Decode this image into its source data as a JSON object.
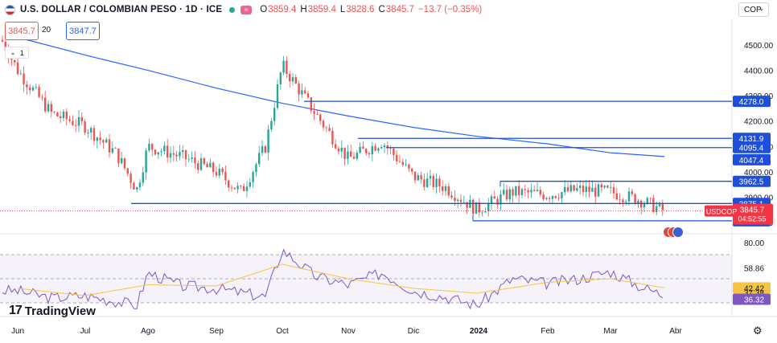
{
  "header": {
    "symbol": "U.S. DOLLAR / COLOMBIAN PESO · 1D · ICE",
    "open_label": "O",
    "open": "3859.4",
    "high_label": "H",
    "high": "3859.4",
    "low_label": "L",
    "low": "3828.6",
    "close_label": "C",
    "close": "3845.7",
    "change": "−13.7 (−0.35%)"
  },
  "trade": {
    "sell_price": "3845.7",
    "spread": "20",
    "buy_price": "3847.7"
  },
  "currency_selector": "COP",
  "indicator_legend": "1",
  "brand": "TradingView",
  "colors": {
    "up": "#26a69a",
    "down": "#ef5350",
    "ma": "#2962ff",
    "level": "#1e4fd8",
    "rsi": "#7e57c2",
    "rsi_ma": "#f5c542",
    "price_tag": "#f23645"
  },
  "chart_data": [
    {
      "type": "candlestick",
      "title": "U.S. DOLLAR / COLOMBIAN PESO",
      "x_axis_labels": [
        "Jun",
        "Jul",
        "Ago",
        "Sep",
        "Oct",
        "Nov",
        "Dic",
        "2024",
        "Feb",
        "Mar",
        "Abr"
      ],
      "y_ticks": [
        4500.0,
        4400.0,
        4300.0,
        4200.0,
        4100.0,
        4000.0,
        3900.0,
        3800.0
      ],
      "ylim": [
        3790,
        4570
      ],
      "moving_average_note": "200-period simple moving average (blue line)",
      "moving_average": [
        {
          "x": "Jun",
          "y": 4530
        },
        {
          "x": "Jul",
          "y": 4460
        },
        {
          "x": "Ago",
          "y": 4400
        },
        {
          "x": "Sep",
          "y": 4330
        },
        {
          "x": "Oct",
          "y": 4270
        },
        {
          "x": "Nov",
          "y": 4220
        },
        {
          "x": "Dic",
          "y": 4175
        },
        {
          "x": "2024",
          "y": 4140
        },
        {
          "x": "Feb",
          "y": 4110
        },
        {
          "x": "Mar",
          "y": 4075
        },
        {
          "x": "late Mar",
          "y": 4060
        }
      ],
      "price_path": [
        {
          "x": "late May",
          "y": 4520
        },
        {
          "x": "Jun",
          "y": 4400
        },
        {
          "x": "mid Jun",
          "y": 4230
        },
        {
          "x": "Jul",
          "y": 4180
        },
        {
          "x": "mid Jul",
          "y": 4070
        },
        {
          "x": "late Jul",
          "y": 3930
        },
        {
          "x": "Ago",
          "y": 4100
        },
        {
          "x": "mid Ago",
          "y": 4060
        },
        {
          "x": "Sep",
          "y": 4000
        },
        {
          "x": "mid Sep",
          "y": 3920
        },
        {
          "x": "late Sep",
          "y": 4100
        },
        {
          "x": "Oct",
          "y": 4420
        },
        {
          "x": "mid Oct",
          "y": 4230
        },
        {
          "x": "Nov",
          "y": 4050
        },
        {
          "x": "mid Nov",
          "y": 4120
        },
        {
          "x": "Dic",
          "y": 3980
        },
        {
          "x": "mid Dic",
          "y": 3940
        },
        {
          "x": "2024",
          "y": 3850
        },
        {
          "x": "mid Ene",
          "y": 3920
        },
        {
          "x": "Feb",
          "y": 3910
        },
        {
          "x": "mid Feb",
          "y": 3930
        },
        {
          "x": "Mar",
          "y": 3920
        },
        {
          "x": "mid Mar",
          "y": 3890
        },
        {
          "x": "late Mar",
          "y": 3845.7
        }
      ],
      "horizontal_levels": [
        4278.0,
        4131.9,
        4095.4,
        3962.5,
        3875.1,
        3806.7
      ],
      "axis_tags": [
        {
          "label": "4278.0",
          "value": 4278.0
        },
        {
          "label": "4131.9",
          "value": 4131.9
        },
        {
          "label": "4095.4",
          "value": 4095.4
        },
        {
          "label": "4047.4",
          "value": 4047.4
        },
        {
          "label": "3962.5",
          "value": 3962.5
        },
        {
          "label": "3875.1",
          "value": 3875.1
        },
        {
          "label": "3845.7",
          "value": 3845.7
        },
        {
          "label": "3806.7",
          "value": 3806.7
        }
      ],
      "last_price": {
        "symbol_tag": "USDCOP",
        "price": "3845.7",
        "countdown": "04:52:55"
      }
    },
    {
      "type": "line",
      "title": "RSI",
      "y_ticks": [
        80.0,
        58.86,
        42.42,
        37.38,
        36.32
      ],
      "ylim": [
        20,
        85
      ],
      "band": [
        30,
        70
      ],
      "rsi": [
        {
          "x": "Jun",
          "y": 40
        },
        {
          "x": "mid Jun",
          "y": 34
        },
        {
          "x": "Jul",
          "y": 36
        },
        {
          "x": "late Jul",
          "y": 28
        },
        {
          "x": "Ago",
          "y": 55
        },
        {
          "x": "mid Ago",
          "y": 44
        },
        {
          "x": "Sep",
          "y": 42
        },
        {
          "x": "late Sep",
          "y": 35
        },
        {
          "x": "Oct",
          "y": 74
        },
        {
          "x": "mid Oct",
          "y": 52
        },
        {
          "x": "Nov",
          "y": 45
        },
        {
          "x": "mid Nov",
          "y": 55
        },
        {
          "x": "Dic",
          "y": 40
        },
        {
          "x": "mid Dic",
          "y": 35
        },
        {
          "x": "2024",
          "y": 28
        },
        {
          "x": "mid Ene",
          "y": 50
        },
        {
          "x": "Feb",
          "y": 46
        },
        {
          "x": "mid Feb",
          "y": 50
        },
        {
          "x": "Mar",
          "y": 56
        },
        {
          "x": "mid Mar",
          "y": 44
        },
        {
          "x": "late Mar",
          "y": 36.32
        }
      ],
      "rsi_ma": [
        {
          "x": "Jun",
          "y": 42
        },
        {
          "x": "Jul",
          "y": 36
        },
        {
          "x": "Ago",
          "y": 45
        },
        {
          "x": "Sep",
          "y": 44
        },
        {
          "x": "Oct",
          "y": 62
        },
        {
          "x": "Nov",
          "y": 50
        },
        {
          "x": "Dic",
          "y": 42
        },
        {
          "x": "2024",
          "y": 38
        },
        {
          "x": "Feb",
          "y": 47
        },
        {
          "x": "Mar",
          "y": 50
        },
        {
          "x": "late Mar",
          "y": 42.42
        }
      ],
      "rsi_tags": [
        {
          "label": "80.00",
          "value": 80.0
        },
        {
          "label": "58.86",
          "value": 58.86
        },
        {
          "label": "42.42",
          "value": 42.42
        },
        {
          "label": "37.38",
          "value": 37.38
        },
        {
          "label": "36.32",
          "value": 36.32
        }
      ]
    }
  ]
}
